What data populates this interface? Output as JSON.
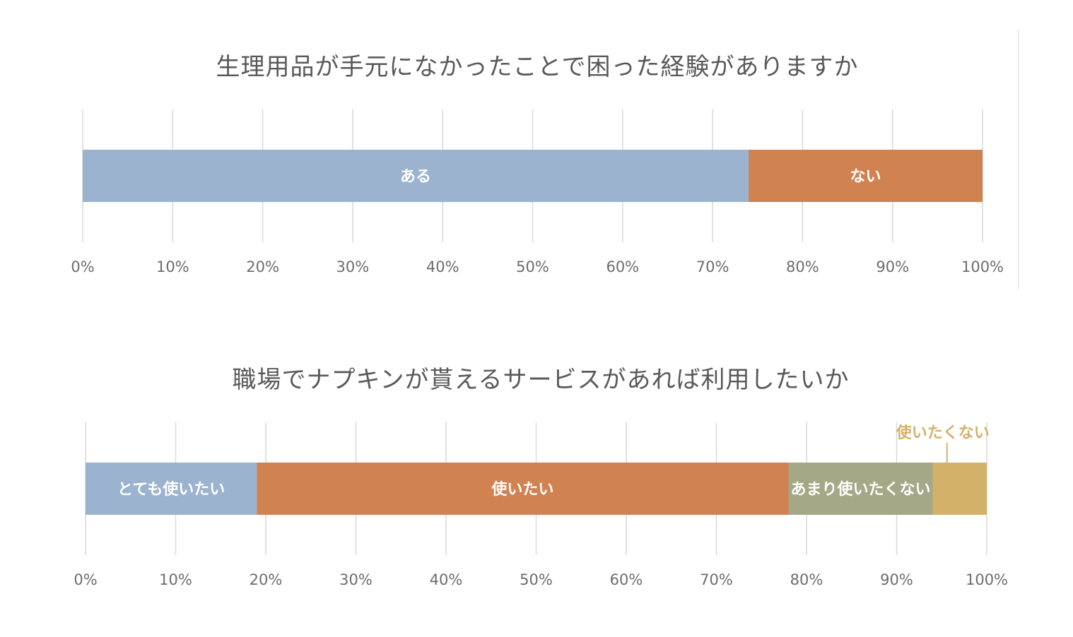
{
  "colors": {
    "blue": "#9bb3cf",
    "orange": "#d08251",
    "olive": "#a5a886",
    "gold": "#d3b169",
    "title": "#595959",
    "tick": "#6d6d6d",
    "grid": "#d9d9d9"
  },
  "chart_data": [
    {
      "type": "bar",
      "orientation": "horizontal-stacked-100",
      "title": "生理用品が手元になかったことで困った経験がありますか",
      "xlim": [
        0,
        100
      ],
      "ticks": [
        "0%",
        "10%",
        "20%",
        "30%",
        "40%",
        "50%",
        "60%",
        "70%",
        "80%",
        "90%",
        "100%"
      ],
      "grid": true,
      "series": [
        {
          "name": "ある",
          "value": 74,
          "color": "#9bb3cf"
        },
        {
          "name": "ない",
          "value": 26,
          "color": "#d08251"
        }
      ]
    },
    {
      "type": "bar",
      "orientation": "horizontal-stacked-100",
      "title": "職場でナプキンが貰えるサービスがあれば利用したいか",
      "xlim": [
        0,
        100
      ],
      "ticks": [
        "0%",
        "10%",
        "20%",
        "30%",
        "40%",
        "50%",
        "60%",
        "70%",
        "80%",
        "90%",
        "100%"
      ],
      "grid": true,
      "series": [
        {
          "name": "とても使いたい",
          "value": 19,
          "color": "#9bb3cf"
        },
        {
          "name": "使いたい",
          "value": 59,
          "color": "#d08251"
        },
        {
          "name": "あまり使いたくない",
          "value": 16,
          "color": "#a5a886"
        },
        {
          "name": "使いたくない",
          "value": 6,
          "color": "#d3b169",
          "label_outside": true
        }
      ]
    }
  ]
}
